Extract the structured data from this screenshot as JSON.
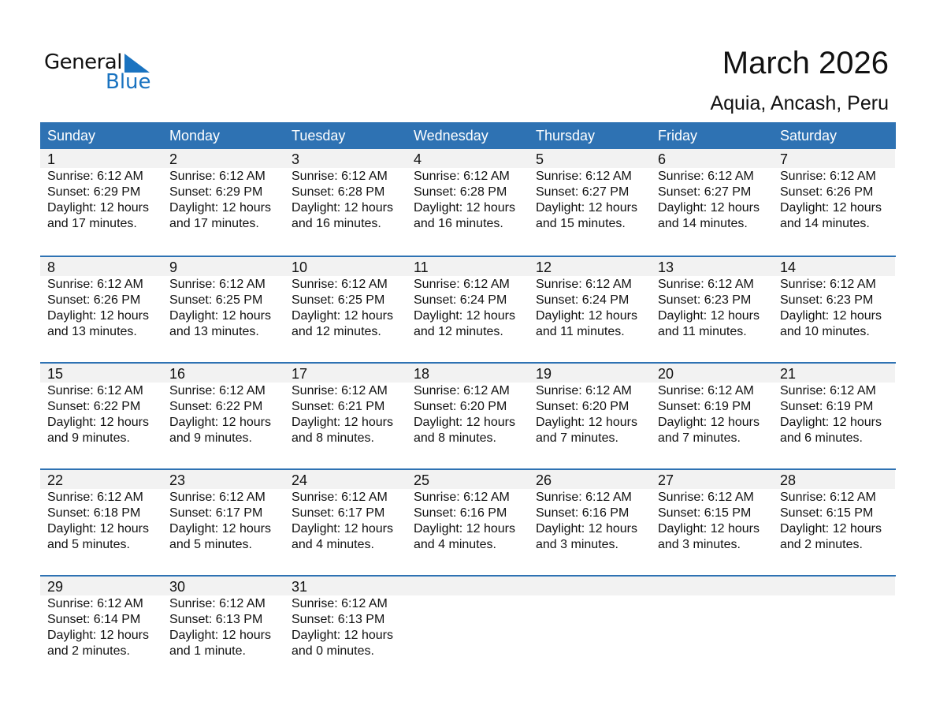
{
  "logo": {
    "general": "General",
    "blue": "Blue"
  },
  "title": "March 2026",
  "location": "Aquia, Ancash, Peru",
  "colors": {
    "header": "#2e72b3",
    "brand_blue": "#1a73c0",
    "date_band": "#f2f2f2"
  },
  "weekdays": [
    "Sunday",
    "Monday",
    "Tuesday",
    "Wednesday",
    "Thursday",
    "Friday",
    "Saturday"
  ],
  "days": [
    {
      "day": "1",
      "sunrise": "Sunrise: 6:12 AM",
      "sunset": "Sunset: 6:29 PM",
      "daylight": "Daylight: 12 hours",
      "minutes": "and 17 minutes."
    },
    {
      "day": "2",
      "sunrise": "Sunrise: 6:12 AM",
      "sunset": "Sunset: 6:29 PM",
      "daylight": "Daylight: 12 hours",
      "minutes": "and 17 minutes."
    },
    {
      "day": "3",
      "sunrise": "Sunrise: 6:12 AM",
      "sunset": "Sunset: 6:28 PM",
      "daylight": "Daylight: 12 hours",
      "minutes": "and 16 minutes."
    },
    {
      "day": "4",
      "sunrise": "Sunrise: 6:12 AM",
      "sunset": "Sunset: 6:28 PM",
      "daylight": "Daylight: 12 hours",
      "minutes": "and 16 minutes."
    },
    {
      "day": "5",
      "sunrise": "Sunrise: 6:12 AM",
      "sunset": "Sunset: 6:27 PM",
      "daylight": "Daylight: 12 hours",
      "minutes": "and 15 minutes."
    },
    {
      "day": "6",
      "sunrise": "Sunrise: 6:12 AM",
      "sunset": "Sunset: 6:27 PM",
      "daylight": "Daylight: 12 hours",
      "minutes": "and 14 minutes."
    },
    {
      "day": "7",
      "sunrise": "Sunrise: 6:12 AM",
      "sunset": "Sunset: 6:26 PM",
      "daylight": "Daylight: 12 hours",
      "minutes": "and 14 minutes."
    },
    {
      "day": "8",
      "sunrise": "Sunrise: 6:12 AM",
      "sunset": "Sunset: 6:26 PM",
      "daylight": "Daylight: 12 hours",
      "minutes": "and 13 minutes."
    },
    {
      "day": "9",
      "sunrise": "Sunrise: 6:12 AM",
      "sunset": "Sunset: 6:25 PM",
      "daylight": "Daylight: 12 hours",
      "minutes": "and 13 minutes."
    },
    {
      "day": "10",
      "sunrise": "Sunrise: 6:12 AM",
      "sunset": "Sunset: 6:25 PM",
      "daylight": "Daylight: 12 hours",
      "minutes": "and 12 minutes."
    },
    {
      "day": "11",
      "sunrise": "Sunrise: 6:12 AM",
      "sunset": "Sunset: 6:24 PM",
      "daylight": "Daylight: 12 hours",
      "minutes": "and 12 minutes."
    },
    {
      "day": "12",
      "sunrise": "Sunrise: 6:12 AM",
      "sunset": "Sunset: 6:24 PM",
      "daylight": "Daylight: 12 hours",
      "minutes": "and 11 minutes."
    },
    {
      "day": "13",
      "sunrise": "Sunrise: 6:12 AM",
      "sunset": "Sunset: 6:23 PM",
      "daylight": "Daylight: 12 hours",
      "minutes": "and 11 minutes."
    },
    {
      "day": "14",
      "sunrise": "Sunrise: 6:12 AM",
      "sunset": "Sunset: 6:23 PM",
      "daylight": "Daylight: 12 hours",
      "minutes": "and 10 minutes."
    },
    {
      "day": "15",
      "sunrise": "Sunrise: 6:12 AM",
      "sunset": "Sunset: 6:22 PM",
      "daylight": "Daylight: 12 hours",
      "minutes": "and 9 minutes."
    },
    {
      "day": "16",
      "sunrise": "Sunrise: 6:12 AM",
      "sunset": "Sunset: 6:22 PM",
      "daylight": "Daylight: 12 hours",
      "minutes": "and 9 minutes."
    },
    {
      "day": "17",
      "sunrise": "Sunrise: 6:12 AM",
      "sunset": "Sunset: 6:21 PM",
      "daylight": "Daylight: 12 hours",
      "minutes": "and 8 minutes."
    },
    {
      "day": "18",
      "sunrise": "Sunrise: 6:12 AM",
      "sunset": "Sunset: 6:20 PM",
      "daylight": "Daylight: 12 hours",
      "minutes": "and 8 minutes."
    },
    {
      "day": "19",
      "sunrise": "Sunrise: 6:12 AM",
      "sunset": "Sunset: 6:20 PM",
      "daylight": "Daylight: 12 hours",
      "minutes": "and 7 minutes."
    },
    {
      "day": "20",
      "sunrise": "Sunrise: 6:12 AM",
      "sunset": "Sunset: 6:19 PM",
      "daylight": "Daylight: 12 hours",
      "minutes": "and 7 minutes."
    },
    {
      "day": "21",
      "sunrise": "Sunrise: 6:12 AM",
      "sunset": "Sunset: 6:19 PM",
      "daylight": "Daylight: 12 hours",
      "minutes": "and 6 minutes."
    },
    {
      "day": "22",
      "sunrise": "Sunrise: 6:12 AM",
      "sunset": "Sunset: 6:18 PM",
      "daylight": "Daylight: 12 hours",
      "minutes": "and 5 minutes."
    },
    {
      "day": "23",
      "sunrise": "Sunrise: 6:12 AM",
      "sunset": "Sunset: 6:17 PM",
      "daylight": "Daylight: 12 hours",
      "minutes": "and 5 minutes."
    },
    {
      "day": "24",
      "sunrise": "Sunrise: 6:12 AM",
      "sunset": "Sunset: 6:17 PM",
      "daylight": "Daylight: 12 hours",
      "minutes": "and 4 minutes."
    },
    {
      "day": "25",
      "sunrise": "Sunrise: 6:12 AM",
      "sunset": "Sunset: 6:16 PM",
      "daylight": "Daylight: 12 hours",
      "minutes": "and 4 minutes."
    },
    {
      "day": "26",
      "sunrise": "Sunrise: 6:12 AM",
      "sunset": "Sunset: 6:16 PM",
      "daylight": "Daylight: 12 hours",
      "minutes": "and 3 minutes."
    },
    {
      "day": "27",
      "sunrise": "Sunrise: 6:12 AM",
      "sunset": "Sunset: 6:15 PM",
      "daylight": "Daylight: 12 hours",
      "minutes": "and 3 minutes."
    },
    {
      "day": "28",
      "sunrise": "Sunrise: 6:12 AM",
      "sunset": "Sunset: 6:15 PM",
      "daylight": "Daylight: 12 hours",
      "minutes": "and 2 minutes."
    },
    {
      "day": "29",
      "sunrise": "Sunrise: 6:12 AM",
      "sunset": "Sunset: 6:14 PM",
      "daylight": "Daylight: 12 hours",
      "minutes": "and 2 minutes."
    },
    {
      "day": "30",
      "sunrise": "Sunrise: 6:12 AM",
      "sunset": "Sunset: 6:13 PM",
      "daylight": "Daylight: 12 hours",
      "minutes": "and 1 minute."
    },
    {
      "day": "31",
      "sunrise": "Sunrise: 6:12 AM",
      "sunset": "Sunset: 6:13 PM",
      "daylight": "Daylight: 12 hours",
      "minutes": "and 0 minutes."
    }
  ]
}
